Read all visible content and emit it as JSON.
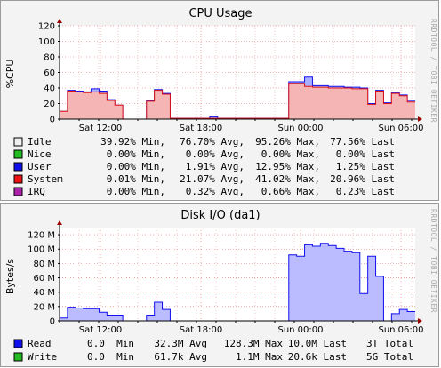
{
  "chart_data": [
    {
      "type": "area",
      "title": "CPU Usage",
      "ylabel": "%CPU",
      "ylim": [
        0,
        120
      ],
      "yticks": [
        0,
        20,
        40,
        60,
        80,
        100,
        120
      ],
      "xticks": [
        "Sat 12:00",
        "Sat 18:00",
        "Sun 00:00",
        "Sun 06:00"
      ],
      "watermark": "RRDTOOL / TOBI OETIKER",
      "series_values": {
        "system": [
          10,
          36,
          35,
          34,
          35,
          33,
          24,
          18,
          0,
          0,
          0,
          23,
          37,
          32,
          1,
          1,
          1,
          1,
          1,
          1,
          1,
          1,
          1,
          1,
          1,
          1,
          1,
          1,
          1,
          46,
          46,
          42,
          41,
          41,
          40,
          40,
          40,
          39,
          39,
          19,
          36,
          20,
          33,
          30,
          22
        ],
        "upper": [
          10,
          37,
          36,
          35,
          39,
          36,
          25,
          18,
          0,
          0,
          0,
          24,
          38,
          33,
          1,
          1,
          1,
          1,
          1,
          3,
          1,
          1,
          1,
          1,
          1,
          1,
          1,
          1,
          1,
          48,
          48,
          54,
          43,
          43,
          42,
          42,
          41,
          41,
          40,
          20,
          37,
          21,
          34,
          31,
          24
        ]
      },
      "series": [
        {
          "name": "Idle",
          "color": "#f0f0f0",
          "min": "39.92% Min,",
          "avg": "76.70% Avg,",
          "max": "95.26% Max,",
          "last": "77.56% Last"
        },
        {
          "name": "Nice",
          "color": "#22bb22",
          "min": "0.00% Min,",
          "avg": "0.00% Avg,",
          "max": "0.00% Max,",
          "last": "0.00% Last"
        },
        {
          "name": "User",
          "color": "#1010ee",
          "min": "0.00% Min,",
          "avg": "1.91% Avg,",
          "max": "12.95% Max,",
          "last": "1.25% Last"
        },
        {
          "name": "System",
          "color": "#ee1111",
          "min": "0.01% Min,",
          "avg": "21.07% Avg,",
          "max": "41.02% Max,",
          "last": "20.96% Last"
        },
        {
          "name": "IRQ",
          "color": "#aa22aa",
          "min": "0.00% Min,",
          "avg": "0.32% Avg,",
          "max": "0.66% Max,",
          "last": "0.23% Last"
        }
      ]
    },
    {
      "type": "area",
      "title": "Disk I/O (da1)",
      "ylabel": "Bytes/s",
      "ylim": [
        0,
        130
      ],
      "yticks": [
        0,
        20,
        40,
        60,
        80,
        100,
        120
      ],
      "ytick_labels": [
        "0",
        "20 M",
        "40 M",
        "60 M",
        "80 M",
        "100 M",
        "120 M"
      ],
      "xticks": [
        "Sat 12:00",
        "Sat 18:00",
        "Sun 00:00",
        "Sun 06:00"
      ],
      "watermark": "RRDTOOL / TOBI OETIKER",
      "series_values": {
        "read": [
          4,
          19,
          18,
          17,
          17,
          12,
          8,
          8,
          0,
          0,
          0,
          8,
          26,
          16,
          0,
          0,
          0,
          0,
          0,
          0,
          0,
          0,
          0,
          0,
          0,
          0,
          0,
          0,
          0,
          92,
          90,
          106,
          104,
          108,
          105,
          101,
          97,
          95,
          38,
          90,
          62,
          0,
          10,
          16,
          13
        ]
      },
      "series": [
        {
          "name": "Read",
          "color": "#1010ee",
          "min": "0.0  Min",
          "avg": "32.3M Avg",
          "max": "128.3M Max",
          "last": "10.0M Last",
          "total": "3T Total"
        },
        {
          "name": "Write",
          "color": "#22bb22",
          "min": "0.0  Min",
          "avg": "61.7k Avg",
          "max": "1.1M Max",
          "last": "20.6k Last",
          "total": "5G Total"
        }
      ]
    }
  ]
}
